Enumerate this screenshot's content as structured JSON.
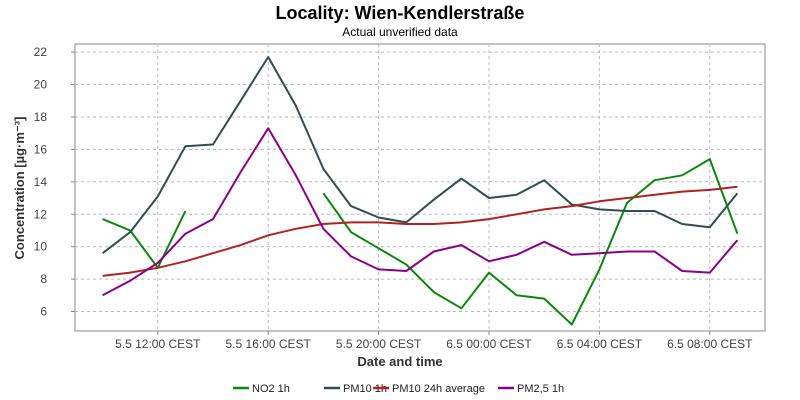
{
  "chart_data": {
    "type": "line",
    "title": "Locality: Wien-Kendlerstraße",
    "subtitle": "Actual unverified data",
    "xlabel": "Date and time",
    "ylabel": "Concentration [µg·m⁻³]",
    "x_tick_labels": [
      "5.5 12:00 CEST",
      "5.5 16:00 CEST",
      "5.5 20:00 CEST",
      "6.5 00:00 CEST",
      "6.5 04:00 CEST",
      "6.5 08:00 CEST"
    ],
    "x_tick_hours": [
      12,
      16,
      20,
      24,
      28,
      32
    ],
    "xlim": [
      9.0,
      34.0
    ],
    "ylim": [
      4.8,
      22.5
    ],
    "y_ticks": [
      6,
      8,
      10,
      12,
      14,
      16,
      18,
      20,
      22
    ],
    "grid": true,
    "legend_position": "bottom",
    "x_hours": [
      10,
      11,
      12,
      13,
      14,
      15,
      16,
      17,
      18,
      19,
      20,
      21,
      22,
      23,
      24,
      25,
      26,
      27,
      28,
      29,
      30,
      31,
      32,
      33
    ],
    "series": [
      {
        "name": "NO2 1h",
        "color": "#0a8a0a",
        "values": [
          11.7,
          11.0,
          8.7,
          12.2,
          null,
          null,
          null,
          null,
          13.3,
          10.9,
          9.9,
          8.9,
          7.2,
          6.2,
          8.4,
          7.0,
          6.8,
          5.2,
          8.6,
          12.7,
          14.1,
          14.4,
          15.4,
          10.8
        ]
      },
      {
        "name": "PM10 1h",
        "color": "#2f4f4f",
        "values": [
          9.6,
          10.9,
          13.1,
          16.2,
          16.3,
          19.0,
          21.7,
          18.7,
          14.8,
          12.5,
          11.8,
          11.5,
          12.9,
          14.2,
          13.0,
          13.2,
          14.1,
          12.6,
          12.3,
          12.2,
          12.2,
          11.4,
          11.2,
          13.3
        ]
      },
      {
        "name": "PM10 24h average",
        "color": "#b22222",
        "values": [
          8.2,
          8.4,
          8.7,
          9.1,
          9.6,
          10.1,
          10.7,
          11.1,
          11.4,
          11.5,
          11.5,
          11.4,
          11.4,
          11.5,
          11.7,
          12.0,
          12.3,
          12.5,
          12.8,
          13.0,
          13.2,
          13.4,
          13.5,
          13.7
        ]
      },
      {
        "name": "PM2,5 1h",
        "color": "#8b008b",
        "values": [
          7.0,
          7.9,
          9.0,
          10.8,
          11.7,
          14.6,
          17.3,
          14.4,
          11.1,
          9.4,
          8.6,
          8.5,
          9.7,
          10.1,
          9.1,
          9.5,
          10.3,
          9.5,
          9.6,
          9.7,
          9.7,
          8.5,
          8.4,
          10.4
        ]
      }
    ]
  }
}
